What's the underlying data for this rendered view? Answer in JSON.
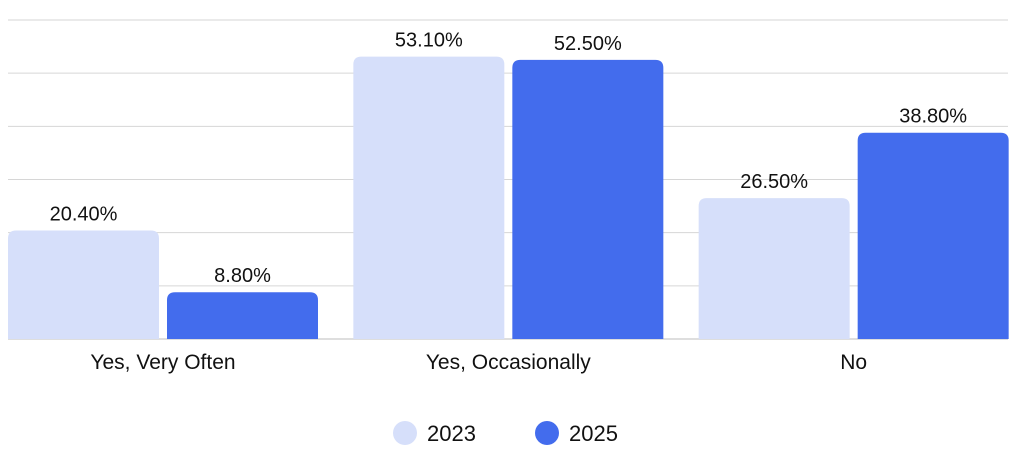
{
  "chart_data": {
    "type": "bar",
    "title": "",
    "xlabel": "",
    "ylabel": "",
    "categories": [
      "Yes, Very Often",
      "Yes, Occasionally",
      "No"
    ],
    "series": [
      {
        "name": "2023",
        "color": "#d6dffa",
        "values": [
          20.4,
          53.1,
          26.5
        ],
        "labels": [
          "20.40%",
          "53.10%",
          "26.50%"
        ]
      },
      {
        "name": "2025",
        "color": "#436ced",
        "values": [
          8.8,
          52.5,
          38.8
        ],
        "labels": [
          "8.80%",
          "52.50%",
          "38.80%"
        ]
      }
    ],
    "ylim": [
      0,
      60
    ],
    "y_ticks_shown": false,
    "grid": true,
    "gridline_values": [
      0,
      10,
      20,
      30,
      40,
      50,
      60
    ],
    "legend_position": "bottom-center",
    "data_labels": true
  }
}
